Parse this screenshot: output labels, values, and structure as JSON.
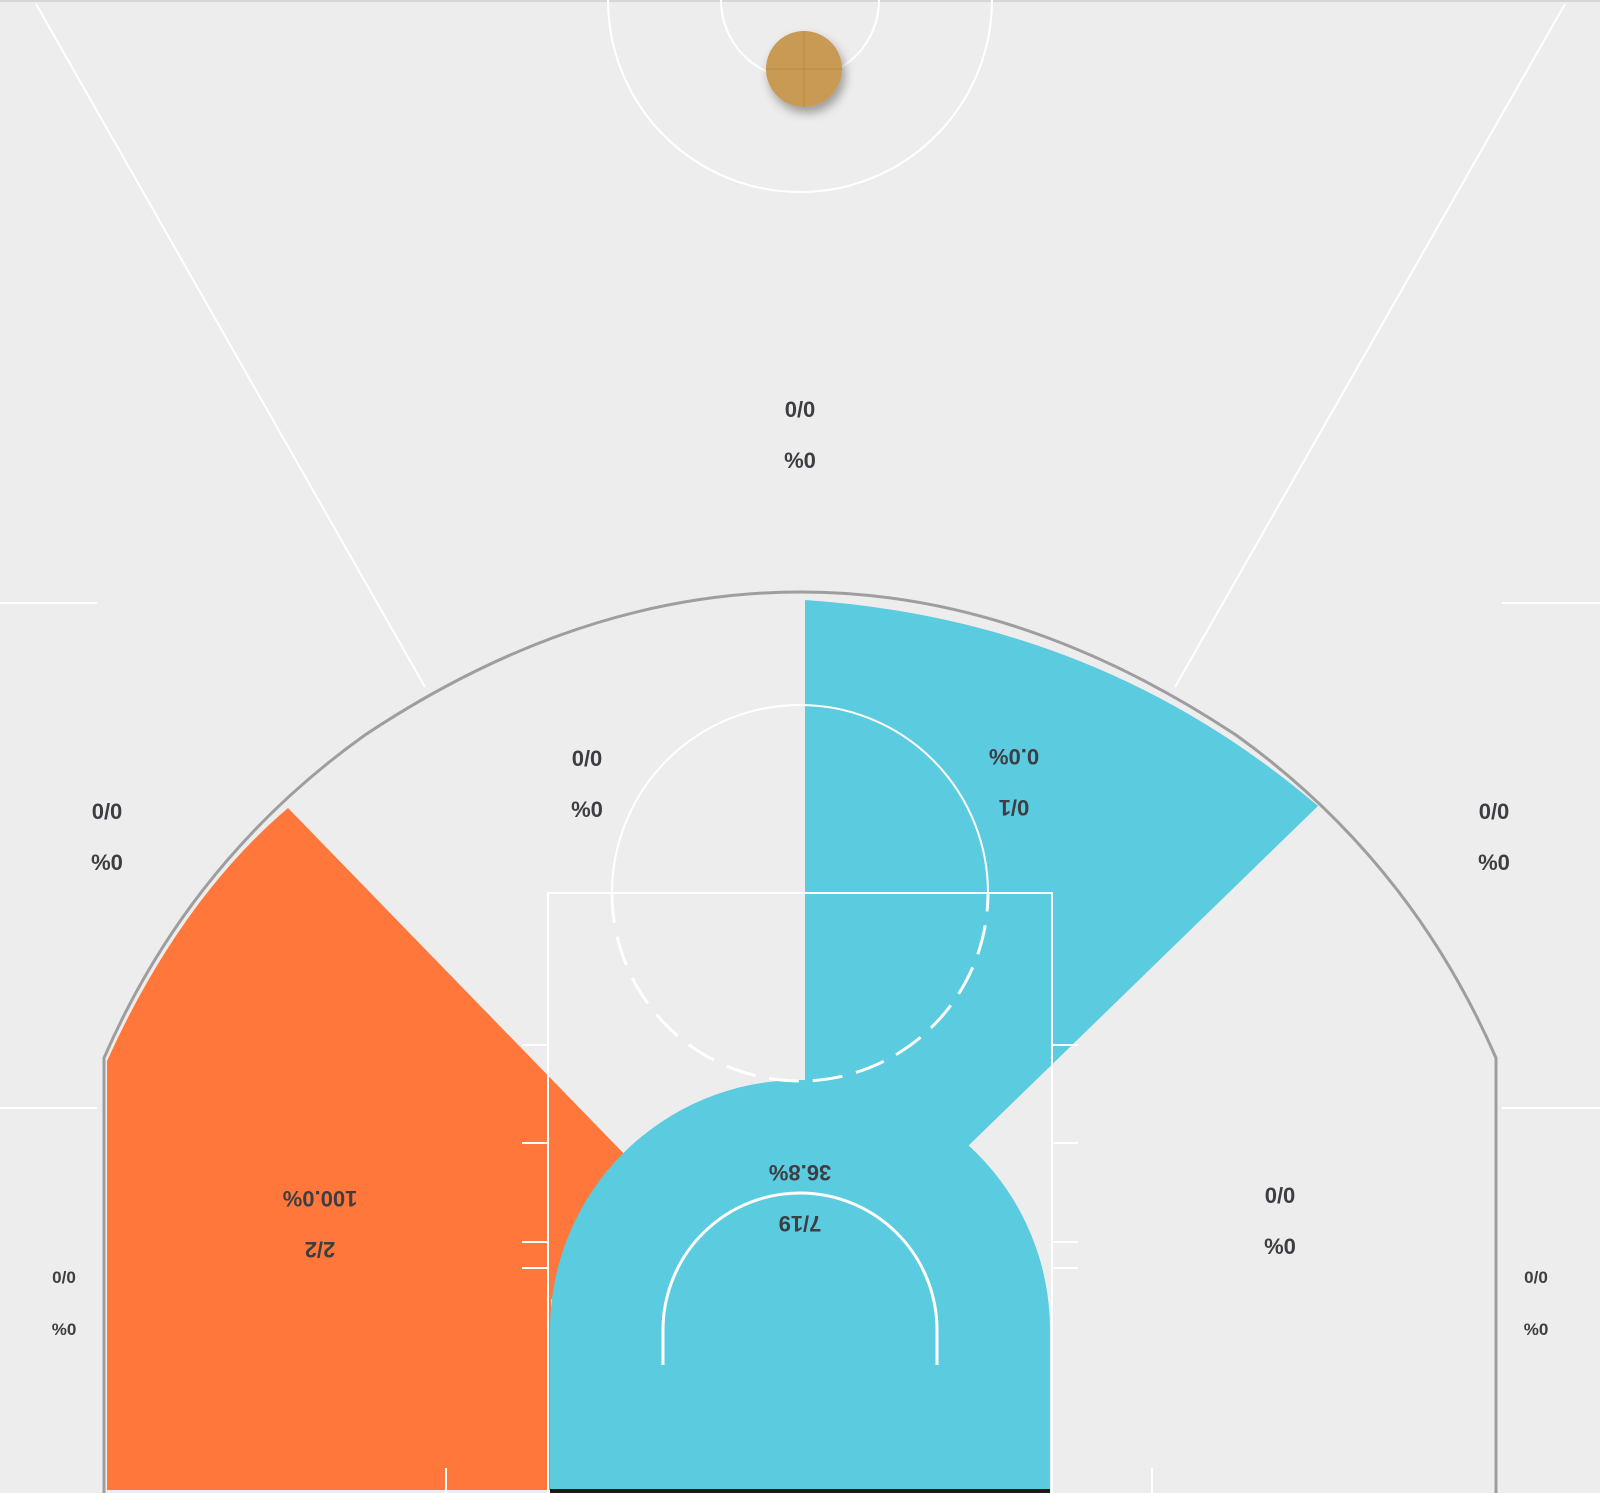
{
  "chart_data": {
    "type": "heatmap",
    "colors": {
      "background": "#eeeded",
      "court_line": "#ffffff",
      "three_point_line": "#9e9e9e",
      "hot": "#ff773a",
      "cold": "#5bcbe0",
      "label": "#3d3e44",
      "ball": "#c99a52"
    },
    "zones": [
      {
        "id": "top-deep",
        "made": 0,
        "attempts": 0,
        "fraction": "0/0",
        "pct_label": "%0",
        "mirrored": false,
        "fill": "none"
      },
      {
        "id": "left-above-break",
        "made": 0,
        "attempts": 0,
        "fraction": "0/0",
        "pct_label": "%0",
        "mirrored": false,
        "fill": "none"
      },
      {
        "id": "right-above-break",
        "made": 0,
        "attempts": 0,
        "fraction": "0/0",
        "pct_label": "%0",
        "mirrored": false,
        "fill": "none"
      },
      {
        "id": "left-corner",
        "made": 0,
        "attempts": 0,
        "fraction": "0/0",
        "pct_label": "%0",
        "mirrored": false,
        "fill": "none"
      },
      {
        "id": "right-corner",
        "made": 0,
        "attempts": 0,
        "fraction": "0/0",
        "pct_label": "%0",
        "mirrored": false,
        "fill": "none"
      },
      {
        "id": "left-top-mid",
        "made": 0,
        "attempts": 0,
        "fraction": "0/0",
        "pct_label": "%0",
        "mirrored": false,
        "fill": "none"
      },
      {
        "id": "right-top-mid",
        "made": 0,
        "attempts": 1,
        "fraction": "0/1",
        "pct_label": "0.0%",
        "mirrored": true,
        "fill": "cold"
      },
      {
        "id": "left-baseline-mid",
        "made": 2,
        "attempts": 2,
        "fraction": "2/2",
        "pct_label": "100.0%",
        "mirrored": true,
        "fill": "hot"
      },
      {
        "id": "right-baseline-mid",
        "made": 0,
        "attempts": 0,
        "fraction": "0/0",
        "pct_label": "%0",
        "mirrored": false,
        "fill": "none"
      },
      {
        "id": "restricted-area",
        "made": 7,
        "attempts": 19,
        "fraction": "7/19",
        "pct_label": "36.8%",
        "mirrored": true,
        "fill": "cold"
      }
    ]
  }
}
